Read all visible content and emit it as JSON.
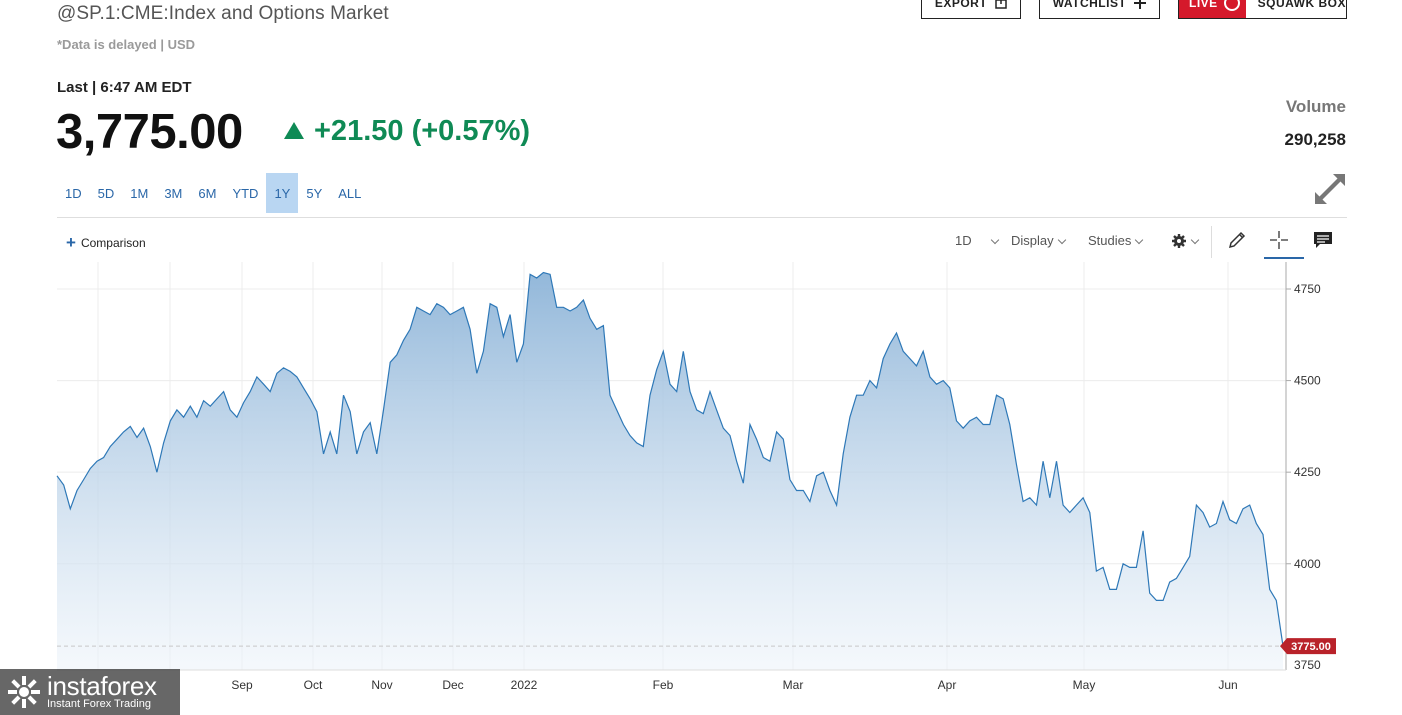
{
  "header": {
    "title": "@SP.1:CME:Index and Options Market",
    "delayed_note": "*Data is delayed | USD",
    "buttons": {
      "export": "EXPORT",
      "watchlist": "WATCHLIST",
      "live": "LIVE",
      "squawk": "SQUAWK BOX"
    }
  },
  "quote": {
    "last_label": "Last | 6:47 AM EDT",
    "price": "3,775.00",
    "change": "+21.50 (+0.57%)",
    "direction": "up",
    "volume_label": "Volume",
    "volume_value": "290,258"
  },
  "ranges": [
    "1D",
    "5D",
    "1M",
    "3M",
    "6M",
    "YTD",
    "1Y",
    "5Y",
    "ALL"
  ],
  "active_range": "1Y",
  "toolbar": {
    "comparison": "Comparison",
    "interval": "1D",
    "display": "Display",
    "studies": "Studies"
  },
  "colors": {
    "accent": "#2a67a8",
    "up": "#0f8a55",
    "live_red": "#d5192b",
    "line": "#2e78b7",
    "last_price_marker": "#b9222a"
  },
  "icons": [
    "export-icon",
    "plus-icon",
    "live-icon",
    "expand-icon",
    "gear-icon",
    "pencil-icon",
    "crosshair-icon",
    "comment-icon"
  ],
  "watermark": {
    "brand": "instaforex",
    "tagline": "Instant Forex Trading"
  },
  "chart_data": {
    "type": "area",
    "x_tick_labels": [
      "Sep",
      "Oct",
      "Nov",
      "Dec",
      "2022",
      "Feb",
      "Mar",
      "Apr",
      "May",
      "Jun"
    ],
    "y_ticks": [
      4000,
      4250,
      4500,
      4750
    ],
    "ylim": [
      3725,
      4825
    ],
    "last_value_label": "3775.00",
    "last_value": 3775,
    "grid": true,
    "values": [
      4240,
      4215,
      4150,
      4200,
      4230,
      4260,
      4280,
      4290,
      4320,
      4340,
      4360,
      4375,
      4345,
      4370,
      4320,
      4250,
      4330,
      4390,
      4420,
      4400,
      4430,
      4400,
      4445,
      4430,
      4450,
      4470,
      4420,
      4400,
      4440,
      4470,
      4510,
      4490,
      4470,
      4520,
      4535,
      4525,
      4510,
      4480,
      4450,
      4415,
      4300,
      4360,
      4300,
      4460,
      4415,
      4300,
      4360,
      4385,
      4300,
      4420,
      4550,
      4570,
      4610,
      4640,
      4700,
      4690,
      4680,
      4710,
      4700,
      4680,
      4690,
      4700,
      4640,
      4520,
      4580,
      4710,
      4700,
      4620,
      4680,
      4550,
      4600,
      4790,
      4780,
      4795,
      4790,
      4700,
      4700,
      4690,
      4700,
      4720,
      4670,
      4640,
      4650,
      4460,
      4420,
      4380,
      4350,
      4330,
      4320,
      4460,
      4530,
      4580,
      4490,
      4470,
      4580,
      4470,
      4420,
      4410,
      4470,
      4420,
      4370,
      4350,
      4280,
      4220,
      4380,
      4340,
      4290,
      4280,
      4360,
      4340,
      4230,
      4200,
      4200,
      4170,
      4240,
      4250,
      4200,
      4160,
      4300,
      4400,
      4460,
      4460,
      4500,
      4480,
      4560,
      4600,
      4630,
      4580,
      4560,
      4540,
      4580,
      4510,
      4490,
      4500,
      4480,
      4390,
      4370,
      4390,
      4400,
      4380,
      4380,
      4460,
      4450,
      4380,
      4270,
      4170,
      4180,
      4160,
      4280,
      4180,
      4280,
      4160,
      4140,
      4160,
      4180,
      4140,
      3980,
      3990,
      3930,
      3930,
      4000,
      3990,
      3990,
      4090,
      3920,
      3900,
      3900,
      3950,
      3960,
      3990,
      4020,
      4160,
      4140,
      4100,
      4110,
      4170,
      4120,
      4110,
      4150,
      4160,
      4110,
      4080,
      3930,
      3900,
      3775
    ]
  }
}
